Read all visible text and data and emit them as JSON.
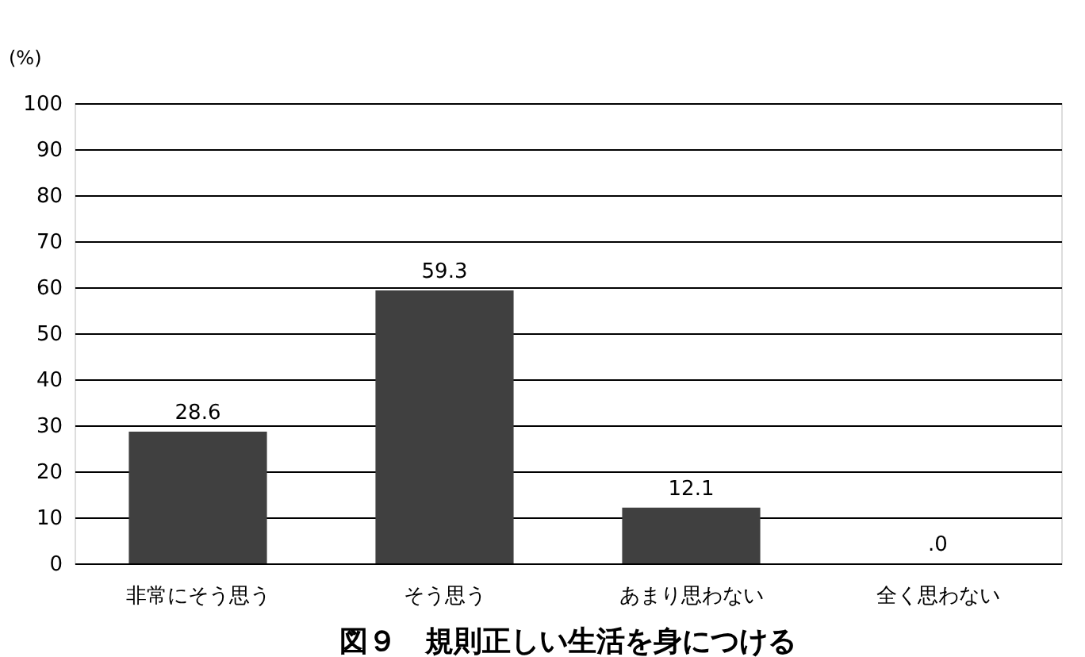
{
  "chart_data": {
    "type": "bar",
    "title": "図９　規則正しい生活を身につける",
    "ylabel": "(%)",
    "categories": [
      "非常にそう思う",
      "そう思う",
      "あまり思わない",
      "全く思わない"
    ],
    "values": [
      28.6,
      59.3,
      12.1,
      0
    ],
    "value_labels": [
      "28.6",
      "59.3",
      "12.1",
      ".0"
    ],
    "color": "#404040",
    "ylim": [
      0,
      100
    ],
    "yticks": [
      0,
      10,
      20,
      30,
      40,
      50,
      60,
      70,
      80,
      90,
      100
    ],
    "grid": "y"
  }
}
